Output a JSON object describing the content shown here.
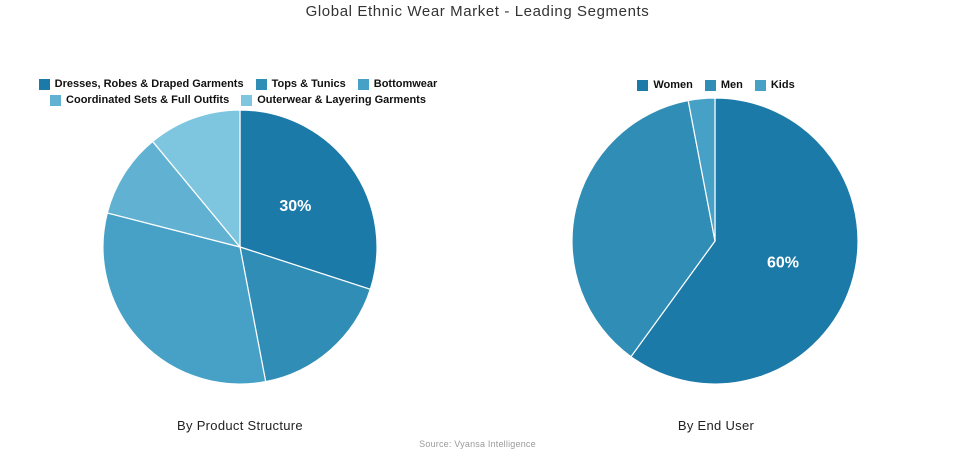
{
  "title": "Global Ethnic Wear Market - Leading Segments",
  "source": "Source: Vyansa Intelligence",
  "colors": {
    "palette": [
      "#1c7aa8",
      "#2f8db6",
      "#47a1c7",
      "#61b1d3",
      "#7ec6e0"
    ],
    "title_text": "#333333",
    "legend_text": "#111111",
    "caption_text": "#222222",
    "source_text": "#9a9a9a",
    "slice_border": "#ffffff",
    "pct_label_text": "#ffffff"
  },
  "chart_data": [
    {
      "type": "pie",
      "name": "by-product-structure",
      "caption": "By Product Structure",
      "legend_position": "top",
      "slices": [
        {
          "label": "Dresses, Robes & Draped Garments",
          "value": 30,
          "pct_label": "30%",
          "color": "#1c7aa8"
        },
        {
          "label": "Tops & Tunics",
          "value": 17,
          "pct_label": "",
          "color": "#2f8db6"
        },
        {
          "label": "Bottomwear",
          "value": 32,
          "pct_label": "",
          "color": "#47a1c7"
        },
        {
          "label": "Coordinated Sets & Full Outfits",
          "value": 10,
          "pct_label": "",
          "color": "#61b1d3"
        },
        {
          "label": "Outerwear & Layering Garments",
          "value": 11,
          "pct_label": "",
          "color": "#7ec6e0"
        }
      ]
    },
    {
      "type": "pie",
      "name": "by-end-user",
      "caption": "By End User",
      "legend_position": "top",
      "slices": [
        {
          "label": "Women",
          "value": 60,
          "pct_label": "60%",
          "color": "#1c7aa8"
        },
        {
          "label": "Men",
          "value": 37,
          "pct_label": "",
          "color": "#2f8db6"
        },
        {
          "label": "Kids",
          "value": 3,
          "pct_label": "",
          "color": "#47a1c7"
        }
      ]
    }
  ]
}
